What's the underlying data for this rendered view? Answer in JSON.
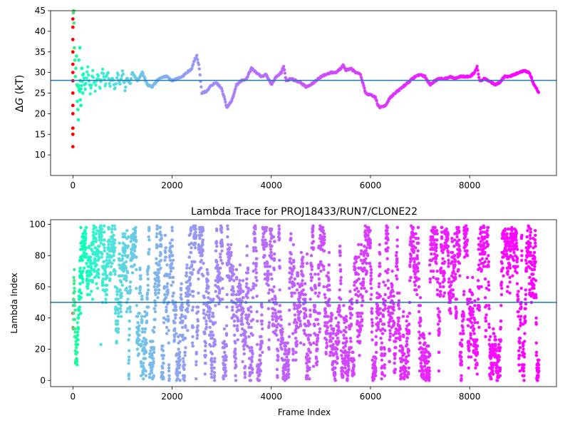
{
  "chart_data": [
    {
      "type": "scatter",
      "title": "",
      "xlabel": "",
      "ylabel_prefix": "Δ",
      "ylabel_italic": "G",
      "ylabel_suffix": " (kT)",
      "xlim": [
        -450,
        9750
      ],
      "ylim": [
        5,
        45
      ],
      "xticks": [
        0,
        2000,
        4000,
        6000,
        8000
      ],
      "xtick_labels": [
        "0",
        "2000",
        "4000",
        "6000",
        "8000"
      ],
      "yticks": [
        10,
        15,
        20,
        25,
        30,
        35,
        40,
        45
      ],
      "ytick_labels": [
        "10",
        "15",
        "20",
        "25",
        "30",
        "35",
        "40",
        "45"
      ],
      "hline": 28.1,
      "hline_color": "#1f77b4",
      "colormap": "rainbow",
      "grid": false,
      "x_max": 9400,
      "trace": [
        [
          100,
          27
        ],
        [
          150,
          24
        ],
        [
          200,
          30
        ],
        [
          250,
          26
        ],
        [
          300,
          31
        ],
        [
          350,
          25
        ],
        [
          400,
          30
        ],
        [
          450,
          26
        ],
        [
          500,
          30
        ],
        [
          550,
          26
        ],
        [
          600,
          31
        ],
        [
          650,
          27
        ],
        [
          700,
          30
        ],
        [
          750,
          27
        ],
        [
          800,
          29
        ],
        [
          850,
          26
        ],
        [
          900,
          29.5
        ],
        [
          950,
          27
        ],
        [
          1000,
          30
        ],
        [
          1050,
          26
        ],
        [
          1100,
          29
        ],
        [
          1150,
          27
        ],
        [
          1200,
          30
        ],
        [
          1300,
          28
        ],
        [
          1400,
          30
        ],
        [
          1500,
          27
        ],
        [
          1600,
          26.5
        ],
        [
          1700,
          28
        ],
        [
          1800,
          29
        ],
        [
          1900,
          29
        ],
        [
          2000,
          28
        ],
        [
          2100,
          28.5
        ],
        [
          2200,
          29
        ],
        [
          2300,
          30
        ],
        [
          2400,
          31
        ],
        [
          2450,
          33
        ],
        [
          2500,
          34
        ],
        [
          2550,
          31
        ],
        [
          2600,
          25
        ],
        [
          2700,
          25.5
        ],
        [
          2800,
          27
        ],
        [
          2900,
          27.5
        ],
        [
          3000,
          26
        ],
        [
          3050,
          24
        ],
        [
          3100,
          21.5
        ],
        [
          3200,
          23
        ],
        [
          3300,
          27
        ],
        [
          3400,
          28
        ],
        [
          3500,
          28.5
        ],
        [
          3600,
          31
        ],
        [
          3700,
          30
        ],
        [
          3800,
          29
        ],
        [
          3900,
          29.5
        ],
        [
          4000,
          27
        ],
        [
          4100,
          29
        ],
        [
          4200,
          30
        ],
        [
          4250,
          31.5
        ],
        [
          4300,
          28
        ],
        [
          4400,
          28.5
        ],
        [
          4500,
          28
        ],
        [
          4600,
          27.5
        ],
        [
          4700,
          26.5
        ],
        [
          4800,
          27
        ],
        [
          4900,
          28
        ],
        [
          5000,
          29
        ],
        [
          5100,
          29.5
        ],
        [
          5200,
          30
        ],
        [
          5300,
          30
        ],
        [
          5400,
          31
        ],
        [
          5450,
          32
        ],
        [
          5500,
          30.5
        ],
        [
          5600,
          31
        ],
        [
          5700,
          30
        ],
        [
          5800,
          29.5
        ],
        [
          5900,
          25
        ],
        [
          6000,
          24.5
        ],
        [
          6100,
          24
        ],
        [
          6150,
          22
        ],
        [
          6200,
          21.5
        ],
        [
          6300,
          22
        ],
        [
          6400,
          24
        ],
        [
          6500,
          25
        ],
        [
          6600,
          26
        ],
        [
          6700,
          27
        ],
        [
          6800,
          28
        ],
        [
          6900,
          29
        ],
        [
          7000,
          29.5
        ],
        [
          7100,
          29
        ],
        [
          7200,
          27
        ],
        [
          7300,
          28
        ],
        [
          7400,
          28.5
        ],
        [
          7500,
          28.5
        ],
        [
          7600,
          29
        ],
        [
          7700,
          28.5
        ],
        [
          7800,
          29
        ],
        [
          7900,
          29
        ],
        [
          8000,
          29
        ],
        [
          8100,
          30
        ],
        [
          8150,
          31.5
        ],
        [
          8200,
          28
        ],
        [
          8300,
          28.5
        ],
        [
          8400,
          28
        ],
        [
          8500,
          27
        ],
        [
          8600,
          27.5
        ],
        [
          8700,
          29
        ],
        [
          8800,
          29
        ],
        [
          8900,
          29.5
        ],
        [
          9000,
          30
        ],
        [
          9100,
          30.5
        ],
        [
          9200,
          30
        ],
        [
          9300,
          27
        ],
        [
          9400,
          25
        ]
      ],
      "early_points": [
        [
          0,
          12
        ],
        [
          0,
          15
        ],
        [
          0,
          16.5
        ],
        [
          0,
          20
        ],
        [
          0,
          22
        ],
        [
          0,
          25
        ],
        [
          0,
          28
        ],
        [
          0,
          30
        ],
        [
          0,
          32
        ],
        [
          0,
          35
        ],
        [
          0,
          38
        ],
        [
          0,
          41
        ],
        [
          0,
          43
        ],
        [
          10,
          44.5
        ],
        [
          15,
          45
        ],
        [
          20,
          42
        ],
        [
          30,
          36
        ],
        [
          40,
          33
        ],
        [
          50,
          29
        ],
        [
          60,
          31
        ],
        [
          70,
          34
        ],
        [
          80,
          27
        ],
        [
          90,
          23
        ],
        [
          100,
          21
        ],
        [
          110,
          18.5
        ],
        [
          120,
          33
        ],
        [
          130,
          26
        ],
        [
          140,
          36
        ],
        [
          150,
          28
        ],
        [
          160,
          22
        ],
        [
          180,
          31
        ],
        [
          200,
          25
        ]
      ]
    },
    {
      "type": "scatter",
      "title": "Lambda Trace for PROJ18433/RUN7/CLONE22",
      "xlabel": "Frame Index",
      "ylabel": "Lambda Index",
      "xlim": [
        -450,
        9750
      ],
      "ylim": [
        -4,
        103
      ],
      "xticks": [
        0,
        2000,
        4000,
        6000,
        8000
      ],
      "xtick_labels": [
        "0",
        "2000",
        "4000",
        "6000",
        "8000"
      ],
      "yticks": [
        0,
        20,
        40,
        60,
        80,
        100
      ],
      "ytick_labels": [
        "0",
        "20",
        "40",
        "60",
        "80",
        "100"
      ],
      "hline": 50,
      "hline_color": "#1f77b4",
      "colormap": "rainbow",
      "grid": false,
      "x_max": 9400,
      "lambda_range": [
        0,
        99
      ]
    }
  ]
}
